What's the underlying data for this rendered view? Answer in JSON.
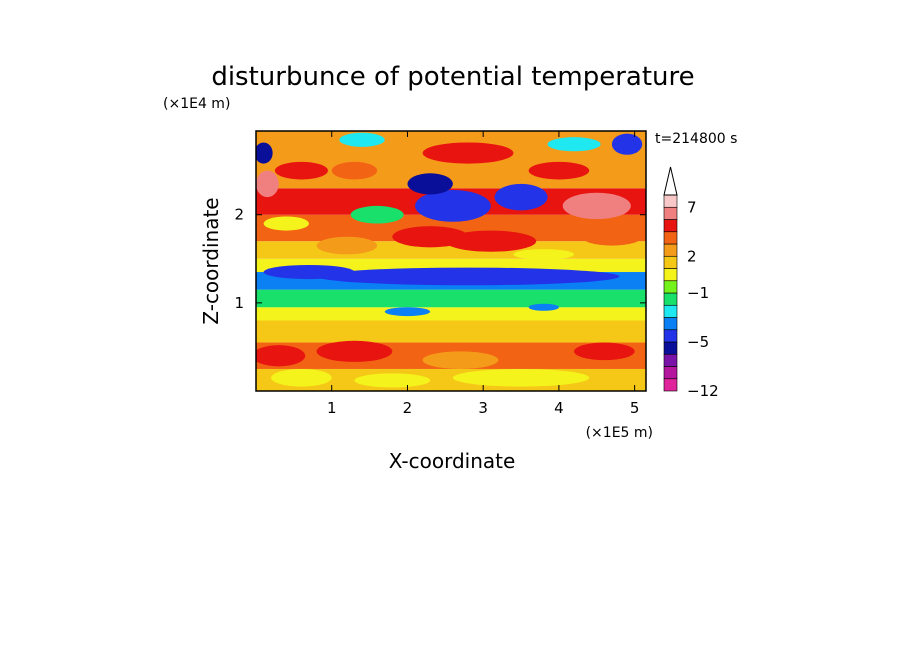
{
  "chart_data": {
    "type": "heatmap",
    "title": "disturbunce of potential temperature",
    "xlabel": "X-coordinate",
    "ylabel": "Z-coordinate",
    "x_unit": "(×1E5 m)",
    "y_unit": "(×1E4 m)",
    "time_label": "t=214800 s",
    "xlim": [
      0,
      5.15
    ],
    "ylim": [
      0,
      2.95
    ],
    "x_ticks": [
      "1",
      "2",
      "3",
      "4",
      "5"
    ],
    "y_ticks": [
      "1",
      "2"
    ],
    "colorbar_labels": [
      "7",
      "2",
      "−1",
      "−5",
      "−12"
    ],
    "colorbar_levels": [
      -12,
      -10,
      -8,
      -6,
      -5,
      -4,
      -3,
      -2,
      -1,
      0,
      1,
      2,
      3,
      4,
      5,
      7,
      9
    ],
    "colorbar_colors": [
      "#e0249c",
      "#b4169e",
      "#7a14a8",
      "#0a0f9a",
      "#2233e8",
      "#0b7ff4",
      "#1fe8f0",
      "#18e06a",
      "#74f21c",
      "#f4f41c",
      "#f5c818",
      "#f59b1a",
      "#f26314",
      "#e81410",
      "#f08080",
      "#f8c8c8"
    ],
    "bands": [
      {
        "z": [
          0.0,
          0.25
        ],
        "level": 1
      },
      {
        "z": [
          0.25,
          0.55
        ],
        "level": 3
      },
      {
        "z": [
          0.55,
          0.8
        ],
        "level": 1
      },
      {
        "z": [
          0.8,
          0.95
        ],
        "level": 0
      },
      {
        "z": [
          0.95,
          1.15
        ],
        "level": -2
      },
      {
        "z": [
          1.15,
          1.35
        ],
        "level": -4
      },
      {
        "z": [
          1.35,
          1.5
        ],
        "level": 0
      },
      {
        "z": [
          1.5,
          1.7
        ],
        "level": 1
      },
      {
        "z": [
          1.7,
          2.0
        ],
        "level": 3
      },
      {
        "z": [
          2.0,
          2.3
        ],
        "level": 4
      },
      {
        "z": [
          2.3,
          2.95
        ],
        "level": 2
      }
    ],
    "cells": [
      {
        "x": 0.3,
        "z": 0.4,
        "rx": 0.35,
        "rz": 0.12,
        "level": 4
      },
      {
        "x": 1.3,
        "z": 0.45,
        "rx": 0.5,
        "rz": 0.12,
        "level": 4
      },
      {
        "x": 2.7,
        "z": 0.35,
        "rx": 0.5,
        "rz": 0.1,
        "level": 2
      },
      {
        "x": 4.6,
        "z": 0.45,
        "rx": 0.4,
        "rz": 0.1,
        "level": 4
      },
      {
        "x": 0.6,
        "z": 0.15,
        "rx": 0.4,
        "rz": 0.1,
        "level": 0
      },
      {
        "x": 3.5,
        "z": 0.15,
        "rx": 0.9,
        "rz": 0.1,
        "level": 0
      },
      {
        "x": 1.8,
        "z": 0.12,
        "rx": 0.5,
        "rz": 0.08,
        "level": 0
      },
      {
        "x": 2.0,
        "z": 0.9,
        "rx": 0.3,
        "rz": 0.05,
        "level": -4
      },
      {
        "x": 3.8,
        "z": 0.95,
        "rx": 0.2,
        "rz": 0.04,
        "level": -4
      },
      {
        "x": 2.8,
        "z": 1.3,
        "rx": 2.0,
        "rz": 0.1,
        "level": -5
      },
      {
        "x": 0.7,
        "z": 1.35,
        "rx": 0.6,
        "rz": 0.08,
        "level": -5
      },
      {
        "x": 2.3,
        "z": 1.75,
        "rx": 0.5,
        "rz": 0.12,
        "level": 4
      },
      {
        "x": 3.1,
        "z": 1.7,
        "rx": 0.6,
        "rz": 0.12,
        "level": 4
      },
      {
        "x": 4.7,
        "z": 1.75,
        "rx": 0.4,
        "rz": 0.1,
        "level": 3
      },
      {
        "x": 1.2,
        "z": 1.65,
        "rx": 0.4,
        "rz": 0.1,
        "level": 2
      },
      {
        "x": 1.6,
        "z": 2.0,
        "rx": 0.35,
        "rz": 0.1,
        "level": -2
      },
      {
        "x": 2.6,
        "z": 2.1,
        "rx": 0.5,
        "rz": 0.18,
        "level": -5
      },
      {
        "x": 2.3,
        "z": 2.35,
        "rx": 0.3,
        "rz": 0.12,
        "level": -6
      },
      {
        "x": 3.5,
        "z": 2.2,
        "rx": 0.35,
        "rz": 0.15,
        "level": -5
      },
      {
        "x": 4.6,
        "z": 2.05,
        "rx": 0.3,
        "rz": 0.08,
        "level": 7
      },
      {
        "x": 4.5,
        "z": 2.1,
        "rx": 0.45,
        "rz": 0.15,
        "level": 5
      },
      {
        "x": 0.15,
        "z": 2.35,
        "rx": 0.15,
        "rz": 0.15,
        "level": 5
      },
      {
        "x": 0.1,
        "z": 2.7,
        "rx": 0.12,
        "rz": 0.12,
        "level": -6
      },
      {
        "x": 0.6,
        "z": 2.5,
        "rx": 0.35,
        "rz": 0.1,
        "level": 4
      },
      {
        "x": 1.3,
        "z": 2.5,
        "rx": 0.3,
        "rz": 0.1,
        "level": 3
      },
      {
        "x": 1.4,
        "z": 2.85,
        "rx": 0.3,
        "rz": 0.08,
        "level": -3
      },
      {
        "x": 2.8,
        "z": 2.7,
        "rx": 0.6,
        "rz": 0.12,
        "level": 4
      },
      {
        "x": 4.0,
        "z": 2.5,
        "rx": 0.4,
        "rz": 0.1,
        "level": 4
      },
      {
        "x": 4.2,
        "z": 2.8,
        "rx": 0.35,
        "rz": 0.08,
        "level": -3
      },
      {
        "x": 4.9,
        "z": 2.8,
        "rx": 0.2,
        "rz": 0.12,
        "level": -5
      },
      {
        "x": 0.4,
        "z": 1.9,
        "rx": 0.3,
        "rz": 0.08,
        "level": 0
      },
      {
        "x": 3.8,
        "z": 1.55,
        "rx": 0.4,
        "rz": 0.06,
        "level": 0
      }
    ]
  }
}
